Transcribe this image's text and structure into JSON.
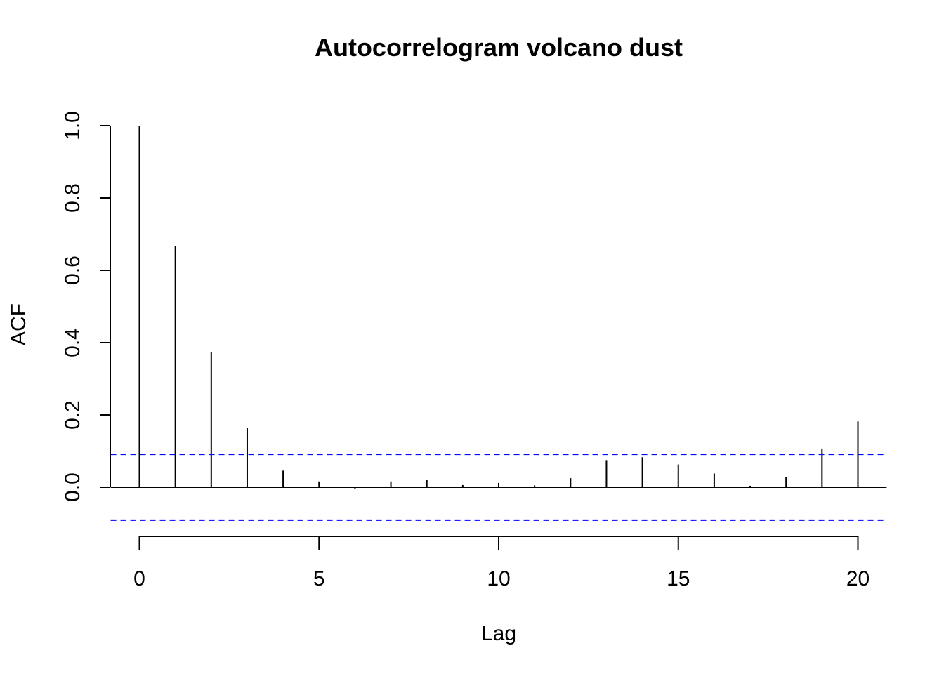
{
  "chart_data": {
    "type": "bar",
    "title": "Autocorrelogram volcano dust",
    "xlabel": "Lag",
    "ylabel": "ACF",
    "x": [
      0,
      1,
      2,
      3,
      4,
      5,
      6,
      7,
      8,
      9,
      10,
      11,
      12,
      13,
      14,
      15,
      16,
      17,
      18,
      19,
      20
    ],
    "values": [
      1.0,
      0.666,
      0.374,
      0.163,
      0.046,
      0.016,
      -0.005,
      0.016,
      0.02,
      0.006,
      0.012,
      0.005,
      0.025,
      0.075,
      0.083,
      0.063,
      0.038,
      0.004,
      0.028,
      0.107,
      0.182
    ],
    "xlim": [
      -0.8,
      20.8
    ],
    "ylim": [
      -0.13,
      1.0
    ],
    "xticks": [
      0,
      5,
      10,
      15,
      20
    ],
    "yticks": [
      0.0,
      0.2,
      0.4,
      0.6,
      0.8,
      1.0
    ],
    "xtick_labels": [
      "0",
      "5",
      "10",
      "15",
      "20"
    ],
    "ytick_labels": [
      "0.0",
      "0.2",
      "0.4",
      "0.6",
      "0.8",
      "1.0"
    ],
    "confidence_bounds": [
      0.091,
      -0.091
    ],
    "colors": {
      "bars": "#000000",
      "confidence": "#0000ff"
    },
    "grid": false
  }
}
